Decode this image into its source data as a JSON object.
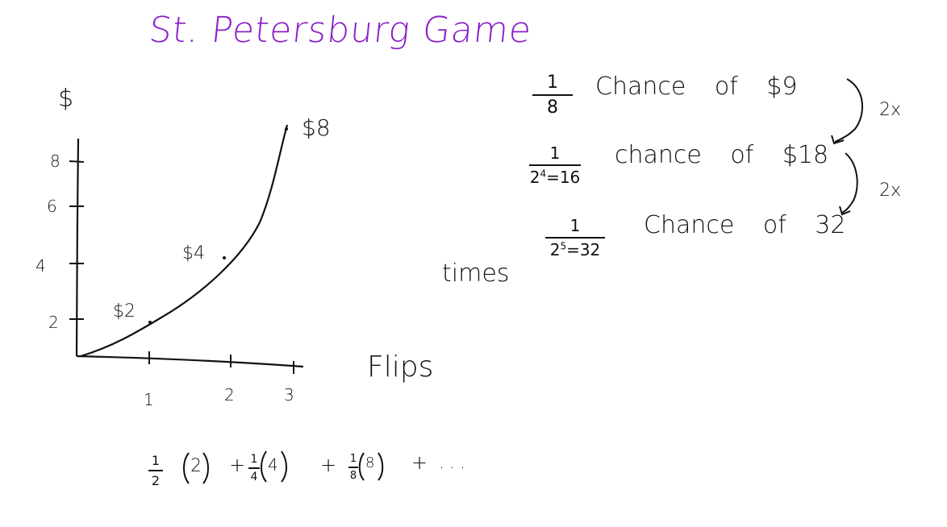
{
  "title": "St. Petersburg Game",
  "graph": {
    "y_axis_label": "$",
    "x_axis_label": "Flips",
    "y_ticks": [
      "8",
      "6",
      "4",
      "2"
    ],
    "x_ticks": [
      "1",
      "2",
      "3"
    ],
    "point_labels": [
      "$2",
      "$4",
      "$8"
    ]
  },
  "side_word": "times",
  "notes": [
    {
      "num": "1",
      "den": "8",
      "text": "Chance of $9"
    },
    {
      "num": "1",
      "den_base": "2",
      "den_exp": "4",
      "den_rest": "=16",
      "text": "chance of $18"
    },
    {
      "num": "1",
      "den_base": "2",
      "den_exp": "5",
      "den_rest": "=32",
      "text": "Chance of 32"
    }
  ],
  "multiplier": "2x",
  "formula": {
    "terms": [
      {
        "num": "1",
        "den": "2",
        "val": "2"
      },
      {
        "num": "1",
        "den": "4",
        "val": "4"
      },
      {
        "num": "1",
        "den": "8",
        "val": "8"
      }
    ],
    "plus": "+",
    "ellipsis": "..."
  }
}
